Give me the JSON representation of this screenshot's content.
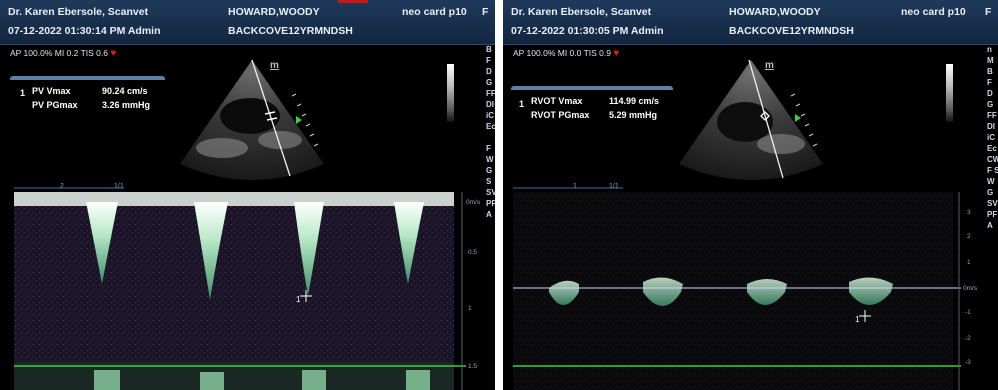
{
  "panels": [
    {
      "header": {
        "operator": "Dr. Karen Ebersole, Scanvet",
        "patient": "HOWARD,WOODY",
        "probe": "neo card p10",
        "probe_edge": "F",
        "datetime": "07-12-2022 01:30:14 PM  Admin",
        "study": "BACKCOVE12YRMNDSH"
      },
      "params": "AP 100.0%  MI 0.2  TIS 0.6",
      "measurement": {
        "index": "1",
        "rows": [
          {
            "label": "PV Vmax",
            "value": "90.24 cm/s"
          },
          {
            "label": "PV PGmax",
            "value": "3.26 mmHg"
          }
        ]
      },
      "scale_labels": [
        "0m/s",
        "0.5",
        "1",
        "1.5"
      ],
      "cursor_label": "1",
      "side_letters": [
        "B",
        "F",
        "D",
        "G",
        "FF",
        "DI",
        "iC",
        "Ec",
        "",
        "F",
        "W",
        "G",
        "S",
        "SV",
        "PF",
        "A"
      ],
      "right_char": "m",
      "bigm": "m",
      "timeline_labels": [
        "2",
        "1/1"
      ]
    },
    {
      "header": {
        "operator": "Dr. Karen Ebersole, Scanvet",
        "patient": "HOWARD,WOODY",
        "probe": "neo card p10",
        "probe_edge": "F",
        "datetime": "07-12-2022 01:30:05 PM  Admin",
        "study": "BACKCOVE12YRMNDSH"
      },
      "params": "AP 100.0%  MI 0.0  TIS 0.9",
      "measurement": {
        "index": "1",
        "rows": [
          {
            "label": "RVOT Vmax",
            "value": "114.99 cm/s"
          },
          {
            "label": "RVOT PGmax",
            "value": "5.29 mmHg"
          }
        ]
      },
      "scale_labels": [
        "3",
        "2",
        "1",
        "0m/s",
        "-1",
        "-2",
        "-3"
      ],
      "cursor_label": "1",
      "side_letters": [
        "n",
        "M",
        "B",
        "F",
        "D",
        "G",
        "FF",
        "DI",
        "iC",
        "Ec",
        "CW",
        "F S",
        "W",
        "G",
        "SV",
        "PF",
        "A"
      ],
      "bigm": "m",
      "timeline_labels": [
        "1",
        "1/1"
      ]
    }
  ],
  "colors": {
    "header_bg": "#1f3a5c",
    "doppler_signal": "#8fd3a6",
    "baseline_green": "#3ccf3c",
    "heart_red": "#e01a1a"
  },
  "icons": [
    "heart-icon",
    "probe-orientation-marker",
    "sample-gate-cursor"
  ]
}
